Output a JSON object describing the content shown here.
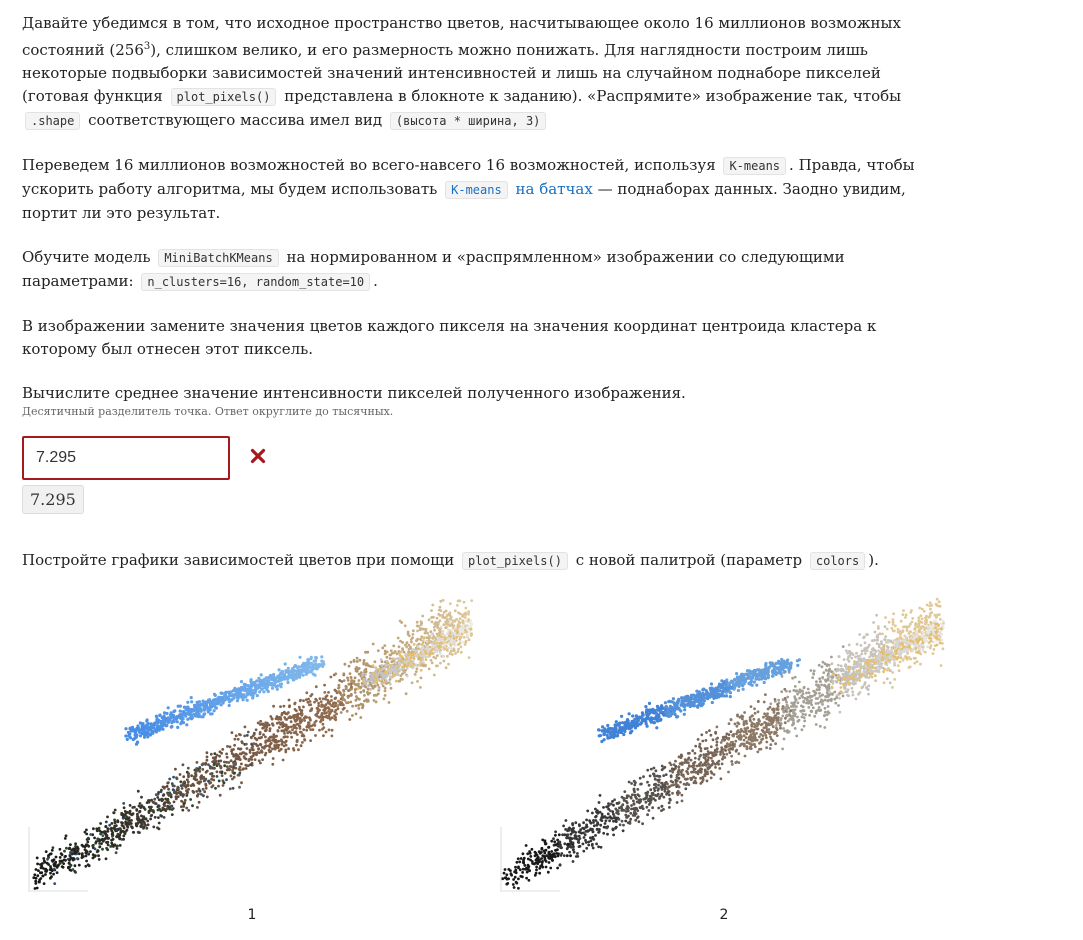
{
  "task": {
    "p1": {
      "text1": "Давайте убедимся в том, что исходное пространство цветов, насчитывающее около 16 миллионов возможных состояний (",
      "base": "256",
      "exp": "3",
      "text2": "), слишком велико, и его размерность можно понижать. Для наглядности построим лишь некоторые подвыборки зависимостей значений интенсивностей и лишь на случайном поднаборе пикселей (готовая функция",
      "code1": "plot_pixels()",
      "text3": "представлена в блокноте к заданию). «Распрямите» изображение так, чтобы",
      "code2": ".shape",
      "text4": "соответствующего массива имел вид",
      "code3": "(высота * ширина, 3)"
    },
    "p2": {
      "text1": "Переведем 16 миллионов возможностей во всего-навсего 16 возможностей, используя",
      "code1": "K-means",
      "text2": ". Правда, чтобы ускорить работу алгоритма, мы будем использовать",
      "link_code": "K-means",
      "link_text": "на батчах",
      "text3": " — поднаборах данных. Заодно увидим, портит ли это результат."
    },
    "p3": {
      "text1": "Обучите модель",
      "code1": "MiniBatchKMeans",
      "text2": "на нормированном и «распрямленном» изображении со следующими параметрами:",
      "code2": "n_clusters=16, random_state=10",
      "text3": "."
    },
    "p4": "В изображении замените значения цветов каждого пикселя на значения координат центроида кластера к которому был отнесен этот пиксель.",
    "p5": "Вычислите среднее значение интенсивности пикселей полученного изображения.",
    "hint": "Десятичный разделитель точка. Ответ округлите до тысячных."
  },
  "answer": {
    "input_value": "7.295",
    "status_icon": "close-icon",
    "status_color": "#a8171d",
    "submitted_value": "7.295"
  },
  "p6": {
    "text1": "Постройте графики зависимостей цветов при помощи",
    "code1": "plot_pixels()",
    "text2": "с новой палитрой (параметр",
    "code2": "colors",
    "text3": ")."
  },
  "charts": [
    {
      "caption": "1",
      "palette": "original"
    },
    {
      "caption": "2",
      "palette": "clustered"
    }
  ]
}
